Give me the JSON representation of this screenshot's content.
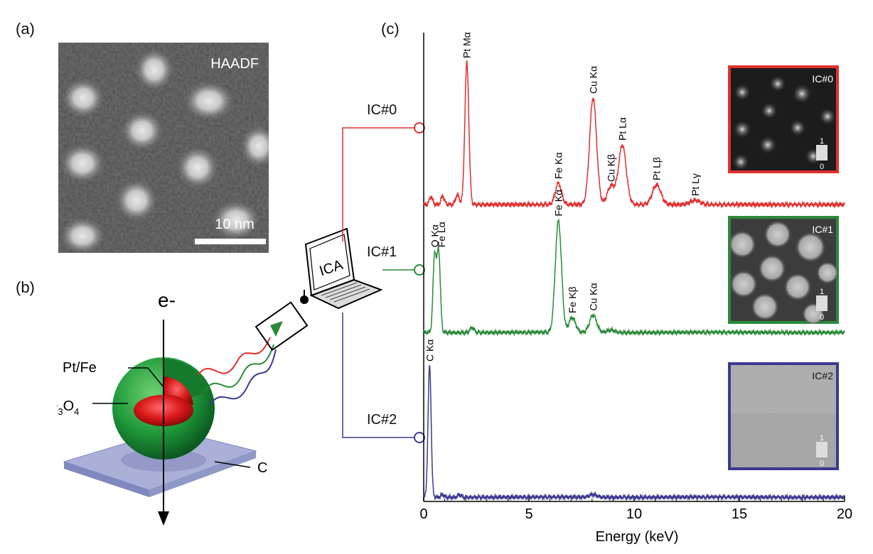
{
  "panels": {
    "a": "(a)",
    "b": "(b)",
    "c": "(c)"
  },
  "haadf": {
    "label": "HAADF",
    "scale_label": "10 nm"
  },
  "schematic": {
    "electron_label": "e-",
    "core_label": "Pt/Fe",
    "shell_label_main": "Fe",
    "shell_sub1": "3",
    "shell_mid": "O",
    "shell_sub2": "4",
    "substrate_label": "C",
    "laptop_label": "ICA"
  },
  "components": [
    {
      "id": "IC#0",
      "color": "#e03030"
    },
    {
      "id": "IC#1",
      "color": "#2a8a3a"
    },
    {
      "id": "IC#2",
      "color": "#3a3a90"
    }
  ],
  "maps": [
    {
      "label": "IC#0",
      "scale_top": "1",
      "scale_bottom": "0"
    },
    {
      "label": "IC#1",
      "scale_top": "1",
      "scale_bottom": "0"
    },
    {
      "label": "IC#2",
      "scale_top": "1",
      "scale_bottom": "0"
    }
  ],
  "chart_data": {
    "type": "line",
    "xlabel": "Energy (keV)",
    "xlim": [
      0,
      20
    ],
    "xticks": [
      0,
      5,
      10,
      15,
      20
    ],
    "series": [
      {
        "name": "IC#0",
        "color": "#e03030",
        "peaks": [
          {
            "x": 0.35,
            "h": 0.06
          },
          {
            "x": 0.9,
            "h": 0.06
          },
          {
            "x": 1.6,
            "h": 0.07
          },
          {
            "x": 2.05,
            "h": 1.0
          },
          {
            "x": 6.4,
            "h": 0.15
          },
          {
            "x": 8.05,
            "h": 0.75
          },
          {
            "x": 8.9,
            "h": 0.13
          },
          {
            "x": 9.44,
            "h": 0.42
          },
          {
            "x": 11.07,
            "h": 0.14
          },
          {
            "x": 12.9,
            "h": 0.03
          }
        ]
      },
      {
        "name": "IC#1",
        "color": "#2a8a3a",
        "peaks": [
          {
            "x": 0.52,
            "h": 0.62
          },
          {
            "x": 0.71,
            "h": 0.65
          },
          {
            "x": 2.3,
            "h": 0.04
          },
          {
            "x": 6.4,
            "h": 0.9
          },
          {
            "x": 7.06,
            "h": 0.12
          },
          {
            "x": 8.05,
            "h": 0.14
          },
          {
            "x": 8.9,
            "h": 0.02
          }
        ]
      },
      {
        "name": "IC#2",
        "color": "#3a3a90",
        "peaks": [
          {
            "x": 0.28,
            "h": 1.0
          },
          {
            "x": 0.9,
            "h": 0.02
          },
          {
            "x": 1.7,
            "h": 0.02
          },
          {
            "x": 8.05,
            "h": 0.02
          }
        ]
      }
    ],
    "annotations": [
      {
        "series": 0,
        "x": 2.05,
        "text": "Pt Mα"
      },
      {
        "series": 0,
        "x": 6.4,
        "text": "Fe Kα"
      },
      {
        "series": 0,
        "x": 8.05,
        "text": "Cu Kα"
      },
      {
        "series": 0,
        "x": 8.9,
        "text": "Cu Kβ"
      },
      {
        "series": 0,
        "x": 9.44,
        "text": "Pt Lα"
      },
      {
        "series": 0,
        "x": 11.07,
        "text": "Pt Lβ"
      },
      {
        "series": 0,
        "x": 12.9,
        "text": "Pt Lγ"
      },
      {
        "series": 1,
        "x": 0.52,
        "text": "O Kα"
      },
      {
        "series": 1,
        "x": 0.85,
        "text": "Fe Lα"
      },
      {
        "series": 1,
        "x": 6.4,
        "text": "Fe Kα"
      },
      {
        "series": 1,
        "x": 7.06,
        "text": "Fe Kβ"
      },
      {
        "series": 1,
        "x": 8.05,
        "text": "Cu Kα"
      },
      {
        "series": 2,
        "x": 0.28,
        "text": "C Kα"
      }
    ]
  }
}
